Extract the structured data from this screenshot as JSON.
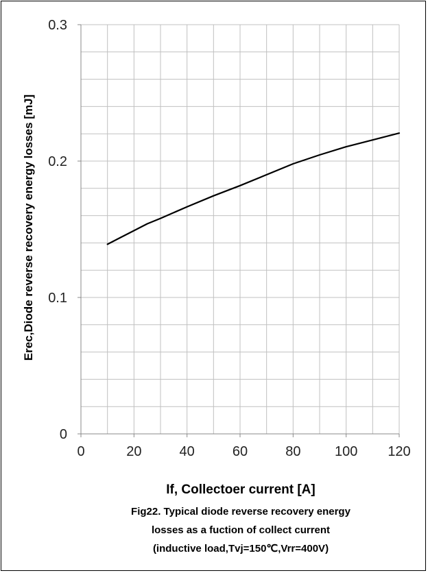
{
  "chart_data": {
    "type": "line",
    "xlabel": "If, Collectoer current [A]",
    "ylabel": "Erec,Diode reverse recovery energy losses   [mJ]",
    "xlim": [
      0,
      120
    ],
    "ylim": [
      0,
      0.3
    ],
    "x_ticks": [
      0,
      20,
      40,
      60,
      80,
      100,
      120
    ],
    "x_tick_labels": [
      "0",
      "20",
      "40",
      "60",
      "80",
      "100",
      "120"
    ],
    "y_ticks": [
      0,
      0.1,
      0.2,
      0.3
    ],
    "y_tick_labels": [
      "0",
      "0.1",
      "0.2",
      "0.3"
    ],
    "x_minor_step": 10,
    "y_minor_step": 0.02,
    "grid": true,
    "line_color": "#000000",
    "grid_color": "#c0c0c0",
    "series": [
      {
        "x": [
          10,
          15,
          20,
          25,
          30,
          40,
          50,
          60,
          70,
          80,
          90,
          100,
          110,
          120
        ],
        "y": [
          0.139,
          0.144,
          0.149,
          0.154,
          0.158,
          0.1665,
          0.1745,
          0.182,
          0.19,
          0.198,
          0.2045,
          0.2105,
          0.2155,
          0.2205
        ]
      }
    ]
  },
  "caption": {
    "line1": "Fig22. Typical diode reverse recovery energy",
    "line2": "losses  as a fuction of  collect current",
    "line3": "(inductive load,Tvj=150℃,Vrr=400V)"
  }
}
